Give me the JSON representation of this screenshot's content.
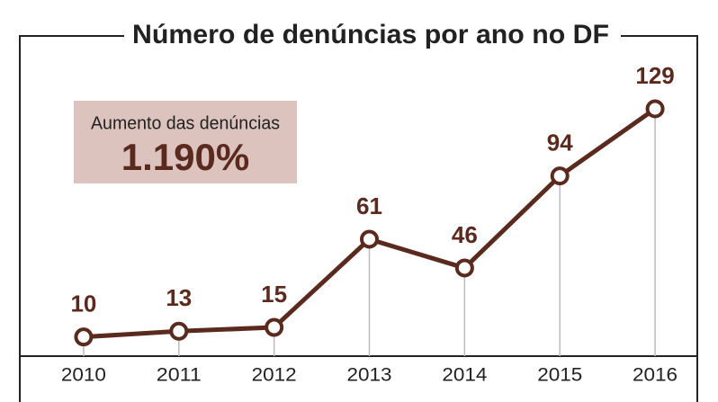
{
  "chart_data": {
    "type": "line",
    "title": "Número de denúncias por ano no DF",
    "categories": [
      "2010",
      "2011",
      "2012",
      "2013",
      "2014",
      "2015",
      "2016"
    ],
    "values": [
      10,
      13,
      15,
      61,
      46,
      94,
      129
    ],
    "color": "#5b2a1f",
    "annotation": {
      "label": "Aumento das denúncias",
      "value": "1.190%"
    }
  }
}
